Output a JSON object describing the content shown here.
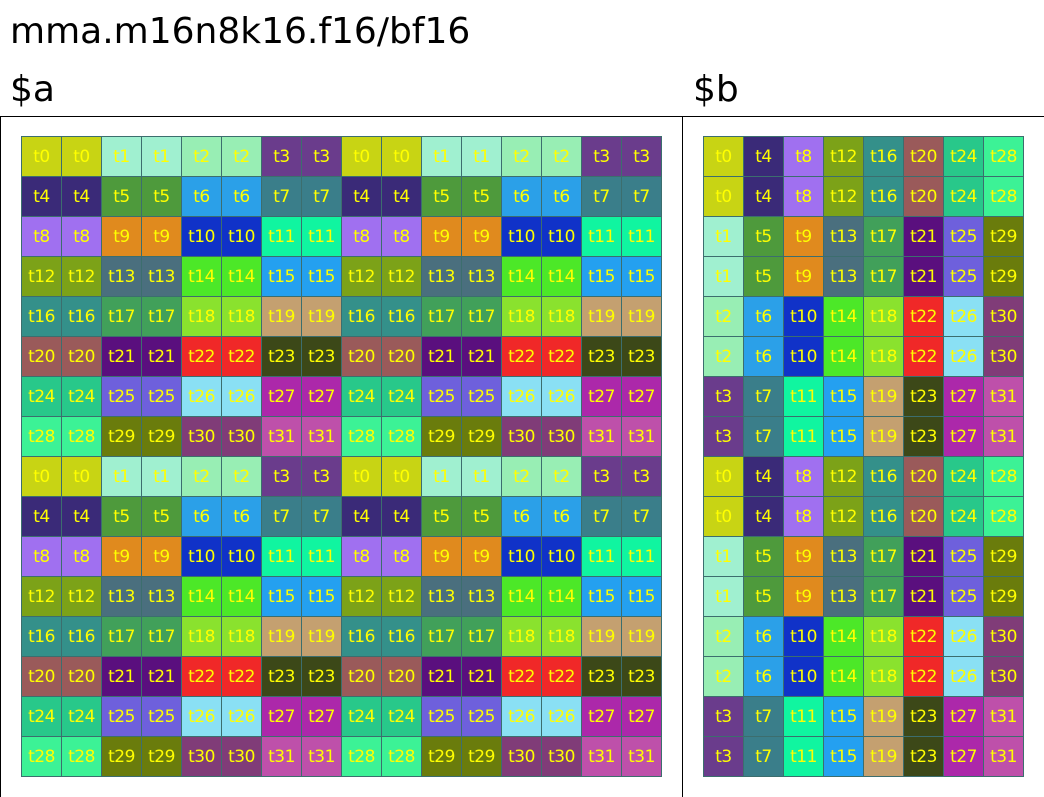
{
  "title": "mma.m16n8k16.f16/bf16",
  "matrix_a": {
    "label": "$a",
    "rows": 16,
    "cols": 16
  },
  "matrix_b": {
    "label": "$b",
    "rows": 16,
    "cols": 8
  },
  "text_color": "#ffff00",
  "thread_colors": [
    "#c8d414",
    "#a0f0d0",
    "#98eeb4",
    "#6a3c8c",
    "#3a2a78",
    "#4e9a3c",
    "#2ba0e8",
    "#3a7e8a",
    "#a070f0",
    "#e08a1e",
    "#1032c8",
    "#10f5a0",
    "#7ca218",
    "#4a6f7e",
    "#4ce828",
    "#24a0f0",
    "#34908a",
    "#41a05a",
    "#8ae22e",
    "#c4a070",
    "#9a5a5a",
    "#5a0f7e",
    "#f02828",
    "#3c4818",
    "#28c88a",
    "#6e60dc",
    "#8ae0f4",
    "#ac28aa",
    "#3cf296",
    "#6a7c0c",
    "#803c78",
    "#be50aa"
  ]
}
